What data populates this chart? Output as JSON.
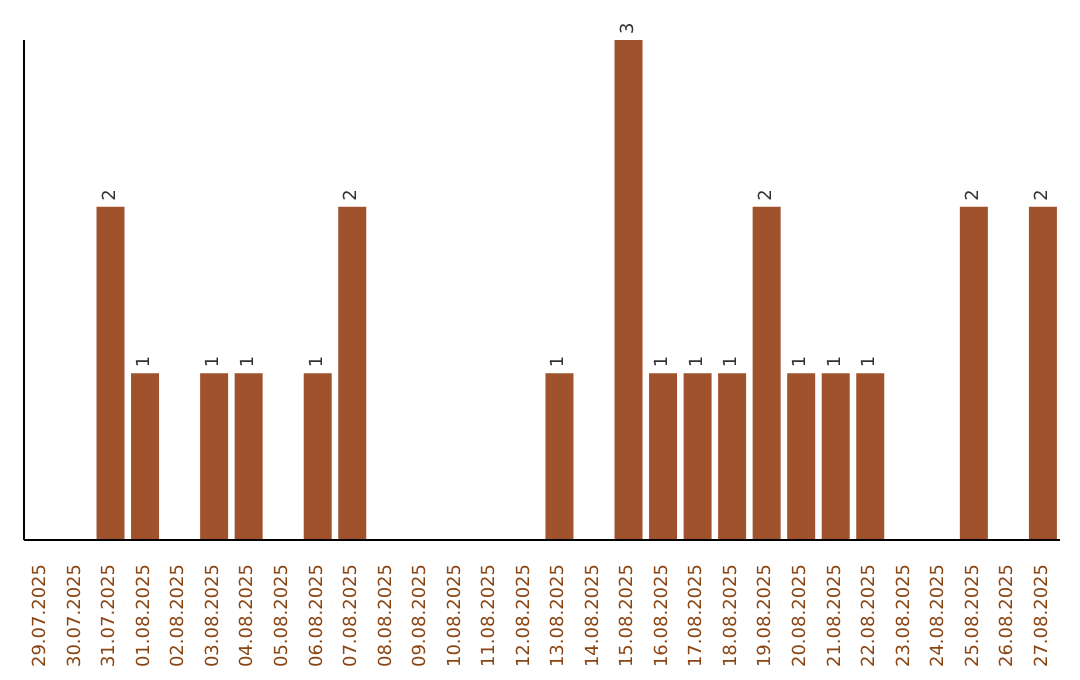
{
  "chart_data": {
    "type": "bar",
    "categories": [
      "29.07.2025",
      "30.07.2025",
      "31.07.2025",
      "01.08.2025",
      "02.08.2025",
      "03.08.2025",
      "04.08.2025",
      "05.08.2025",
      "06.08.2025",
      "07.08.2025",
      "08.08.2025",
      "09.08.2025",
      "10.08.2025",
      "11.08.2025",
      "12.08.2025",
      "13.08.2025",
      "14.08.2025",
      "15.08.2025",
      "16.08.2025",
      "17.08.2025",
      "18.08.2025",
      "19.08.2025",
      "20.08.2025",
      "21.08.2025",
      "22.08.2025",
      "23.08.2025",
      "24.08.2025",
      "25.08.2025",
      "26.08.2025",
      "27.08.2025"
    ],
    "values": [
      null,
      null,
      2,
      1,
      null,
      1,
      1,
      null,
      1,
      2,
      null,
      null,
      null,
      null,
      null,
      1,
      null,
      3,
      1,
      1,
      1,
      2,
      1,
      1,
      1,
      null,
      null,
      2,
      null,
      2
    ],
    "color": "#a0522d",
    "data_labels": true
  }
}
